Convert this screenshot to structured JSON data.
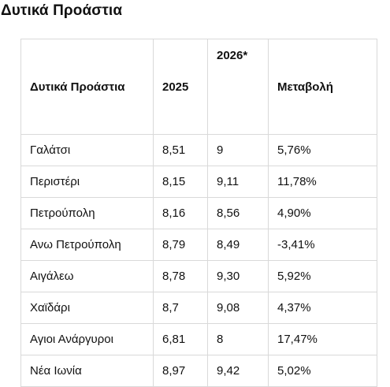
{
  "page": {
    "title": "Δυτικά Προάστια"
  },
  "table": {
    "headers": [
      "Δυτικά Προάστια",
      "2025",
      "2026*",
      "Μεταβολή"
    ],
    "rows": [
      [
        "Γαλάτσι",
        "8,51",
        "9",
        "5,76%"
      ],
      [
        "Περιστέρι",
        "8,15",
        "9,11",
        "11,78%"
      ],
      [
        "Πετρούπολη",
        "8,16",
        "8,56",
        "4,90%"
      ],
      [
        "Ανω Πετρούπολη",
        "8,79",
        "8,49",
        "-3,41%"
      ],
      [
        "Αιγάλεω",
        "8,78",
        "9,30",
        "5,92%"
      ],
      [
        "Χαϊδάρι",
        "8,7",
        "9,08",
        "4,37%"
      ],
      [
        "Αγιοι Ανάργυροι",
        "6,81",
        "8",
        "17,47%"
      ],
      [
        "Νέα Ιωνία",
        "8,97",
        "9,42",
        "5,02%"
      ]
    ]
  }
}
